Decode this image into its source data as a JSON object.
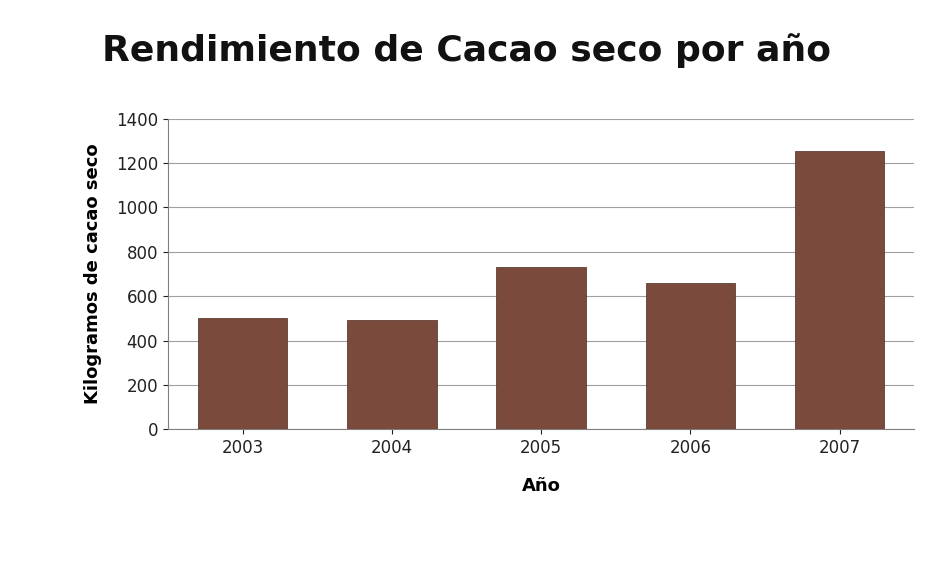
{
  "chart_data": {
    "type": "bar",
    "title": "Rendimiento de Cacao seco por año",
    "x_label": "Año",
    "y_label": "Kilogramos de cacao seco",
    "categories": [
      "2003",
      "2004",
      "2005",
      "2006",
      "2007"
    ],
    "values": [
      500,
      495,
      730,
      660,
      1255
    ],
    "color": "#7a4b3c",
    "ylim": [
      0,
      1400
    ],
    "yticks": [
      0,
      200,
      400,
      600,
      800,
      1000,
      1200,
      1400
    ],
    "grid": true
  }
}
